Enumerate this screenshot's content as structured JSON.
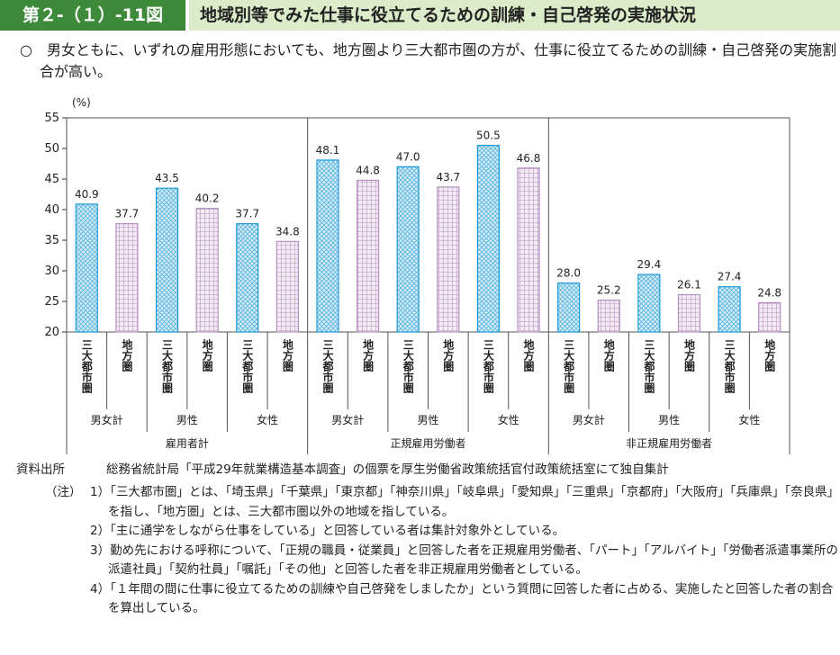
{
  "header": {
    "figure_number": "第２-（１）-11図",
    "title": "地域別等でみた仕事に役立てるための訓練・自己啓発の実施状況"
  },
  "subtitle": "○　男女ともに、いずれの雇用形態においても、地方圏より三大都市圏の方が、仕事に役立てるための訓練・自己啓発の実施割合が高い。",
  "chart_data": {
    "type": "bar",
    "y_unit": "(%)",
    "categories": [
      "三大都市圏",
      "地方圏",
      "三大都市圏",
      "地方圏",
      "三大都市圏",
      "地方圏",
      "三大都市圏",
      "地方圏",
      "三大都市圏",
      "地方圏",
      "三大都市圏",
      "地方圏",
      "三大都市圏",
      "地方圏",
      "三大都市圏",
      "地方圏",
      "三大都市圏",
      "地方圏"
    ],
    "values": [
      40.9,
      37.7,
      43.5,
      40.2,
      37.7,
      34.8,
      48.1,
      44.8,
      47.0,
      43.7,
      50.5,
      46.8,
      28.0,
      25.2,
      29.4,
      26.1,
      27.4,
      24.8
    ],
    "value_labels": [
      "40.9",
      "37.7",
      "43.5",
      "40.2",
      "37.7",
      "34.8",
      "48.1",
      "44.8",
      "47.0",
      "43.7",
      "50.5",
      "46.8",
      "28.0",
      "25.2",
      "29.4",
      "26.1",
      "27.4",
      "24.8"
    ],
    "groups": [
      {
        "name": "雇用者計",
        "subgroups": [
          "男女計",
          "男性",
          "女性"
        ]
      },
      {
        "name": "正規雇用労働者",
        "subgroups": [
          "男女計",
          "男性",
          "女性"
        ]
      },
      {
        "name": "非正規雇用労働者",
        "subgroups": [
          "男女計",
          "男性",
          "女性"
        ]
      }
    ],
    "bar_colors": [
      "#1f9ad6",
      "#b58fc0"
    ],
    "ylim": [
      20,
      55
    ],
    "yticks": [
      20,
      25,
      30,
      35,
      40,
      45,
      50,
      55
    ]
  },
  "notes": {
    "source_label": "資料出所",
    "source": "総務省統計局「平成29年就業構造基本調査」の個票を厚生労働省政策統括官付政策統括室にて独自集計",
    "note_label": "（注）",
    "items": [
      "1）「三大都市圏」とは、「埼玉県」「千葉県」「東京都」「神奈川県」「岐阜県」「愛知県」「三重県」「京都府」「大阪府」「兵庫県」「奈良県」を指し、「地方圏」とは、三大都市圏以外の地域を指している。",
      "2）「主に通学をしながら仕事をしている」と回答している者は集計対象外としている。",
      "3）勤め先における呼称について、「正規の職員・従業員」と回答した者を正規雇用労働者、「パート」「アルバイト」「労働者派遣事業所の派遣社員」「契約社員」「嘱託」「その他」と回答した者を非正規雇用労働者としている。",
      "4）「１年間の間に仕事に役立てるための訓練や自己啓発をしましたか」という質問に回答した者に占める、実施したと回答した者の割合を算出している。"
    ]
  }
}
